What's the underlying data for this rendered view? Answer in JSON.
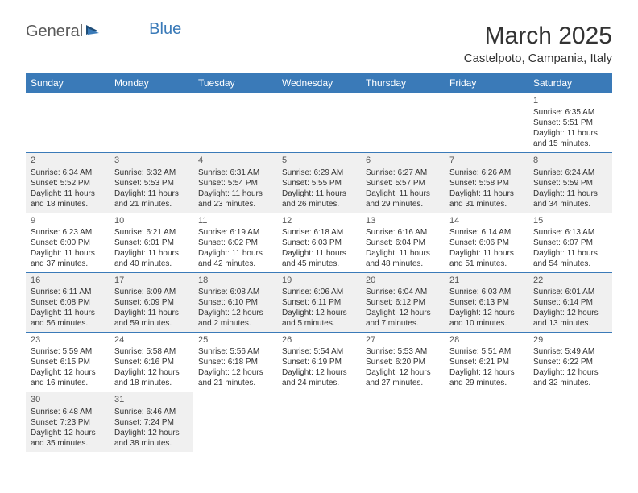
{
  "logo": {
    "text1": "General",
    "text2": "Blue"
  },
  "title": "March 2025",
  "location": "Castelpoto, Campania, Italy",
  "colors": {
    "header_bg": "#3a7ab8",
    "header_text": "#ffffff",
    "row_alt_bg": "#f0f0f0",
    "row_bg": "#ffffff",
    "border": "#3a7ab8",
    "text": "#333333",
    "logo_gray": "#5a5a5a",
    "logo_blue": "#3a7ab8"
  },
  "days_of_week": [
    "Sunday",
    "Monday",
    "Tuesday",
    "Wednesday",
    "Thursday",
    "Friday",
    "Saturday"
  ],
  "weeks": [
    [
      null,
      null,
      null,
      null,
      null,
      null,
      {
        "n": "1",
        "sr": "Sunrise: 6:35 AM",
        "ss": "Sunset: 5:51 PM",
        "dl": "Daylight: 11 hours and 15 minutes."
      }
    ],
    [
      {
        "n": "2",
        "sr": "Sunrise: 6:34 AM",
        "ss": "Sunset: 5:52 PM",
        "dl": "Daylight: 11 hours and 18 minutes."
      },
      {
        "n": "3",
        "sr": "Sunrise: 6:32 AM",
        "ss": "Sunset: 5:53 PM",
        "dl": "Daylight: 11 hours and 21 minutes."
      },
      {
        "n": "4",
        "sr": "Sunrise: 6:31 AM",
        "ss": "Sunset: 5:54 PM",
        "dl": "Daylight: 11 hours and 23 minutes."
      },
      {
        "n": "5",
        "sr": "Sunrise: 6:29 AM",
        "ss": "Sunset: 5:55 PM",
        "dl": "Daylight: 11 hours and 26 minutes."
      },
      {
        "n": "6",
        "sr": "Sunrise: 6:27 AM",
        "ss": "Sunset: 5:57 PM",
        "dl": "Daylight: 11 hours and 29 minutes."
      },
      {
        "n": "7",
        "sr": "Sunrise: 6:26 AM",
        "ss": "Sunset: 5:58 PM",
        "dl": "Daylight: 11 hours and 31 minutes."
      },
      {
        "n": "8",
        "sr": "Sunrise: 6:24 AM",
        "ss": "Sunset: 5:59 PM",
        "dl": "Daylight: 11 hours and 34 minutes."
      }
    ],
    [
      {
        "n": "9",
        "sr": "Sunrise: 6:23 AM",
        "ss": "Sunset: 6:00 PM",
        "dl": "Daylight: 11 hours and 37 minutes."
      },
      {
        "n": "10",
        "sr": "Sunrise: 6:21 AM",
        "ss": "Sunset: 6:01 PM",
        "dl": "Daylight: 11 hours and 40 minutes."
      },
      {
        "n": "11",
        "sr": "Sunrise: 6:19 AM",
        "ss": "Sunset: 6:02 PM",
        "dl": "Daylight: 11 hours and 42 minutes."
      },
      {
        "n": "12",
        "sr": "Sunrise: 6:18 AM",
        "ss": "Sunset: 6:03 PM",
        "dl": "Daylight: 11 hours and 45 minutes."
      },
      {
        "n": "13",
        "sr": "Sunrise: 6:16 AM",
        "ss": "Sunset: 6:04 PM",
        "dl": "Daylight: 11 hours and 48 minutes."
      },
      {
        "n": "14",
        "sr": "Sunrise: 6:14 AM",
        "ss": "Sunset: 6:06 PM",
        "dl": "Daylight: 11 hours and 51 minutes."
      },
      {
        "n": "15",
        "sr": "Sunrise: 6:13 AM",
        "ss": "Sunset: 6:07 PM",
        "dl": "Daylight: 11 hours and 54 minutes."
      }
    ],
    [
      {
        "n": "16",
        "sr": "Sunrise: 6:11 AM",
        "ss": "Sunset: 6:08 PM",
        "dl": "Daylight: 11 hours and 56 minutes."
      },
      {
        "n": "17",
        "sr": "Sunrise: 6:09 AM",
        "ss": "Sunset: 6:09 PM",
        "dl": "Daylight: 11 hours and 59 minutes."
      },
      {
        "n": "18",
        "sr": "Sunrise: 6:08 AM",
        "ss": "Sunset: 6:10 PM",
        "dl": "Daylight: 12 hours and 2 minutes."
      },
      {
        "n": "19",
        "sr": "Sunrise: 6:06 AM",
        "ss": "Sunset: 6:11 PM",
        "dl": "Daylight: 12 hours and 5 minutes."
      },
      {
        "n": "20",
        "sr": "Sunrise: 6:04 AM",
        "ss": "Sunset: 6:12 PM",
        "dl": "Daylight: 12 hours and 7 minutes."
      },
      {
        "n": "21",
        "sr": "Sunrise: 6:03 AM",
        "ss": "Sunset: 6:13 PM",
        "dl": "Daylight: 12 hours and 10 minutes."
      },
      {
        "n": "22",
        "sr": "Sunrise: 6:01 AM",
        "ss": "Sunset: 6:14 PM",
        "dl": "Daylight: 12 hours and 13 minutes."
      }
    ],
    [
      {
        "n": "23",
        "sr": "Sunrise: 5:59 AM",
        "ss": "Sunset: 6:15 PM",
        "dl": "Daylight: 12 hours and 16 minutes."
      },
      {
        "n": "24",
        "sr": "Sunrise: 5:58 AM",
        "ss": "Sunset: 6:16 PM",
        "dl": "Daylight: 12 hours and 18 minutes."
      },
      {
        "n": "25",
        "sr": "Sunrise: 5:56 AM",
        "ss": "Sunset: 6:18 PM",
        "dl": "Daylight: 12 hours and 21 minutes."
      },
      {
        "n": "26",
        "sr": "Sunrise: 5:54 AM",
        "ss": "Sunset: 6:19 PM",
        "dl": "Daylight: 12 hours and 24 minutes."
      },
      {
        "n": "27",
        "sr": "Sunrise: 5:53 AM",
        "ss": "Sunset: 6:20 PM",
        "dl": "Daylight: 12 hours and 27 minutes."
      },
      {
        "n": "28",
        "sr": "Sunrise: 5:51 AM",
        "ss": "Sunset: 6:21 PM",
        "dl": "Daylight: 12 hours and 29 minutes."
      },
      {
        "n": "29",
        "sr": "Sunrise: 5:49 AM",
        "ss": "Sunset: 6:22 PM",
        "dl": "Daylight: 12 hours and 32 minutes."
      }
    ],
    [
      {
        "n": "30",
        "sr": "Sunrise: 6:48 AM",
        "ss": "Sunset: 7:23 PM",
        "dl": "Daylight: 12 hours and 35 minutes."
      },
      {
        "n": "31",
        "sr": "Sunrise: 6:46 AM",
        "ss": "Sunset: 7:24 PM",
        "dl": "Daylight: 12 hours and 38 minutes."
      },
      null,
      null,
      null,
      null,
      null
    ]
  ]
}
